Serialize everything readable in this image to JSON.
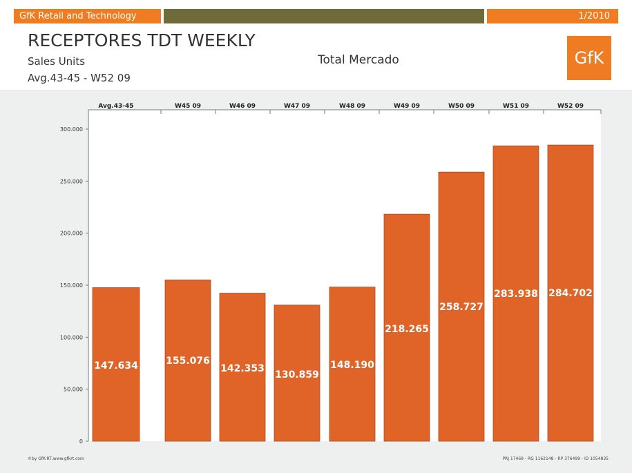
{
  "header": {
    "left_label": "GfK Retail and Technology",
    "right_label": "1/2010",
    "title": "RECEPTORES TDT WEEKLY",
    "subtitle": "Sales Units",
    "period": "Avg.43-45 - W52 09",
    "market": "Total Mercado",
    "logo_text": "GfK"
  },
  "footer": {
    "left": "©by GfK-RT,www.gfkrt.com",
    "right": "PRJ 17469 - RG 1162148 - RP 376499 - ID 1054835"
  },
  "colors": {
    "accent": "#ef7b22",
    "bar": "#e06428",
    "olive": "#6f6a3a",
    "chart_bg": "#eef0f0"
  },
  "chart_data": {
    "type": "bar",
    "categories": [
      "Avg.43-45",
      "W45 09",
      "W46 09",
      "W47 09",
      "W48 09",
      "W49 09",
      "W50 09",
      "W51 09",
      "W52 09"
    ],
    "values": [
      147634,
      155076,
      142353,
      130859,
      148190,
      218265,
      258727,
      283938,
      284702
    ],
    "value_labels": [
      "147.634",
      "155.076",
      "142.353",
      "130.859",
      "148.190",
      "218.265",
      "258.727",
      "283.938",
      "284.702"
    ],
    "y_ticks": [
      0,
      50000,
      100000,
      150000,
      200000,
      250000,
      300000
    ],
    "y_tick_labels": [
      "0",
      "50.000",
      "100.000",
      "150.000",
      "200.000",
      "250.000",
      "300.000"
    ],
    "ylim": [
      0,
      300000
    ],
    "legend": "none",
    "grid": false
  }
}
